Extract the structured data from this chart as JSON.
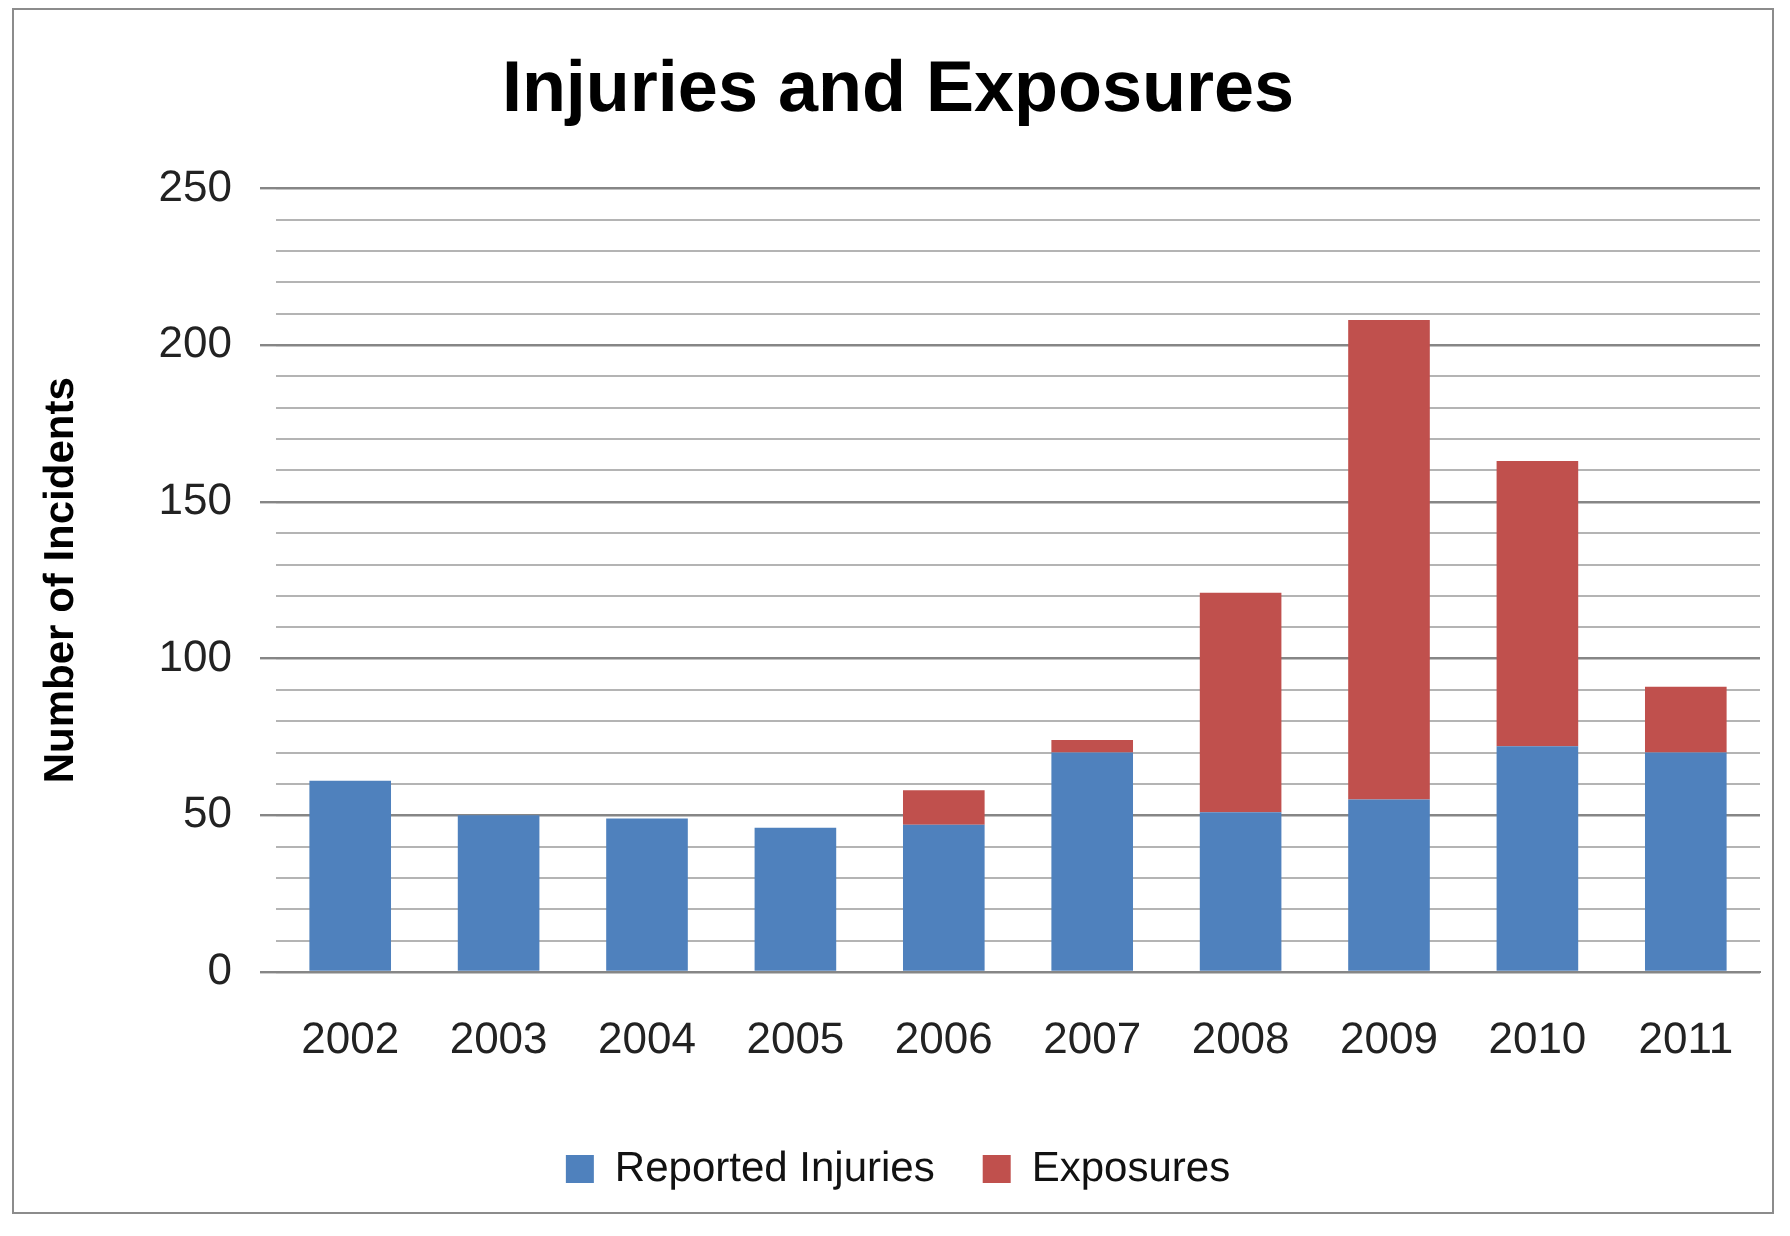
{
  "chart_data": {
    "type": "bar",
    "title": "Injuries and Exposures",
    "ylabel": "Number of Incidents",
    "categories": [
      "2002",
      "2003",
      "2004",
      "2005",
      "2006",
      "2007",
      "2008",
      "2009",
      "2010",
      "2011"
    ],
    "series": [
      {
        "name": "Reported Injuries",
        "color": "#4f81bd",
        "values": [
          61,
          50,
          49,
          46,
          47,
          70,
          51,
          55,
          72,
          70
        ]
      },
      {
        "name": "Exposures",
        "color": "#c0504d",
        "values": [
          null,
          null,
          null,
          null,
          11,
          4,
          70,
          153,
          91,
          21
        ]
      }
    ],
    "stacked": true,
    "ylim": [
      0,
      250
    ],
    "yticks": [
      0,
      {
        "value": 10,
        "label": null
      },
      {
        "value": 20,
        "label": null
      },
      {
        "value": 30,
        "label": null
      },
      {
        "value": 40,
        "label": null
      },
      50,
      {
        "value": 60,
        "label": null
      },
      {
        "value": 70,
        "label": null
      },
      {
        "value": 80,
        "label": null
      },
      {
        "value": 90,
        "label": null
      },
      100,
      {
        "value": 110,
        "label": null
      },
      {
        "value": 120,
        "label": null
      },
      {
        "value": 130,
        "label": null
      },
      {
        "value": 140,
        "label": null
      },
      150,
      {
        "value": 160,
        "label": null
      },
      {
        "value": 170,
        "label": null
      },
      {
        "value": 180,
        "label": null
      },
      {
        "value": 190,
        "label": null
      },
      200,
      {
        "value": 210,
        "label": null
      },
      {
        "value": 220,
        "label": null
      },
      {
        "value": 230,
        "label": null
      },
      {
        "value": 240,
        "label": null
      },
      250
    ],
    "grid": "y",
    "legend": "bottom"
  }
}
